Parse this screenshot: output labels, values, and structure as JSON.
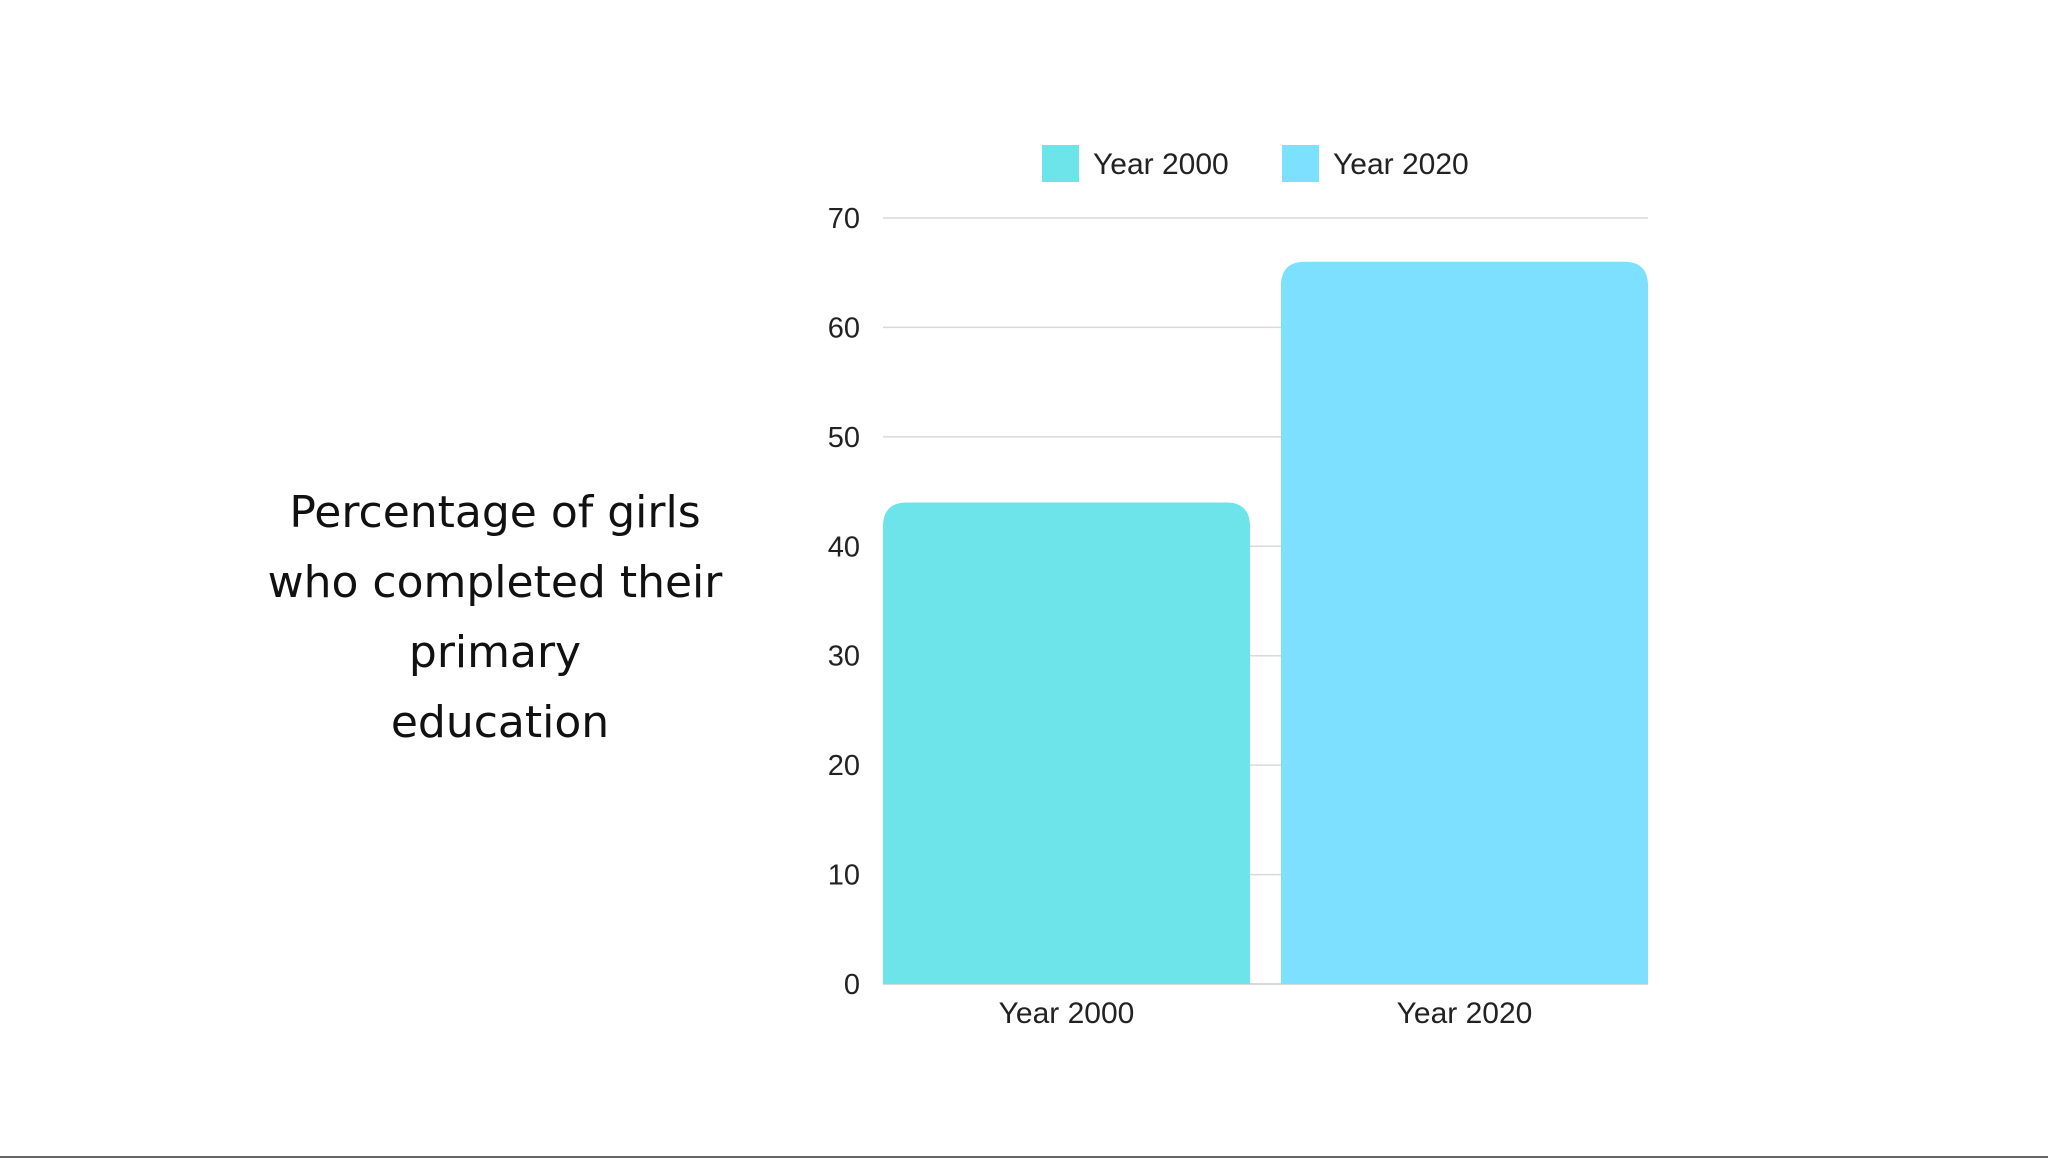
{
  "title_lines": [
    "Percentage of girls",
    "who completed their",
    "primary",
    "education"
  ],
  "colors": {
    "year2000": "#6ce4ea",
    "year2020": "#7ce0fe",
    "grid": "#d9d9d9",
    "baseline": "#cccccc"
  },
  "chart_data": {
    "type": "bar",
    "categories": [
      "Year 2000",
      "Year 2020"
    ],
    "series": [
      {
        "name": "Year 2000",
        "values": [
          44,
          null
        ],
        "color": "#6ce4ea"
      },
      {
        "name": "Year 2020",
        "values": [
          null,
          66
        ],
        "color": "#7ce0fe"
      }
    ],
    "ylim": [
      0,
      70
    ],
    "yticks": [
      0,
      10,
      20,
      30,
      40,
      50,
      60,
      70
    ],
    "title": "Percentage of girls who completed their primary education",
    "xlabel": "",
    "ylabel": "",
    "legend": {
      "position": "top",
      "entries": [
        "Year 2000",
        "Year 2020"
      ]
    },
    "grid": true
  }
}
